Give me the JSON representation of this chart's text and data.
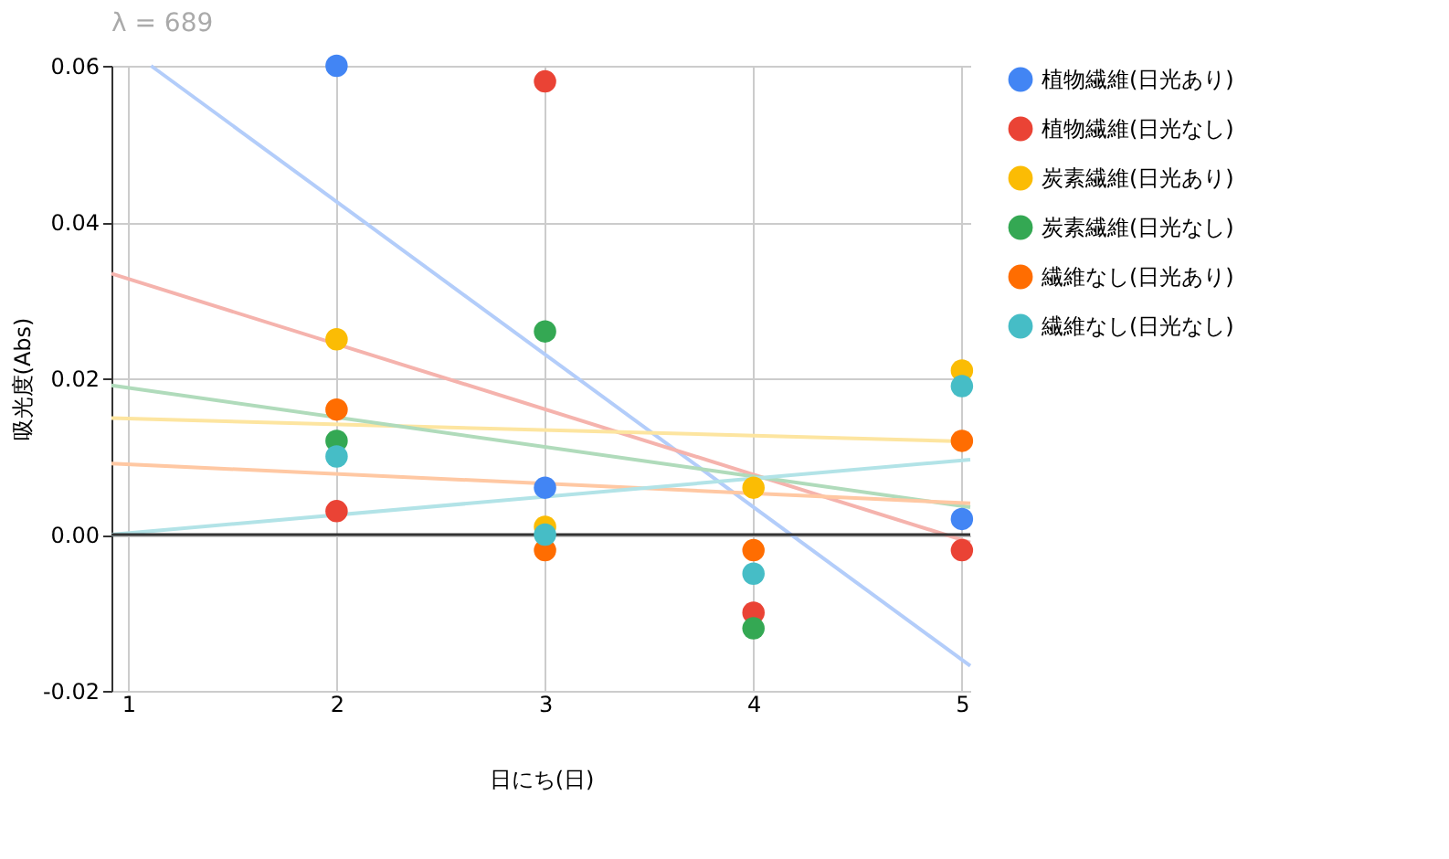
{
  "chart_data": {
    "type": "scatter",
    "title": "λ = 689",
    "xlabel": "日にち(日)",
    "ylabel": "吸光度(Abs)",
    "x": [
      2,
      3,
      4,
      5
    ],
    "series": [
      {
        "name": "植物繊維(日光あり)",
        "color": "#4285f4",
        "values": [
          0.06,
          0.006,
          null,
          0.002
        ]
      },
      {
        "name": "植物繊維(日光なし)",
        "color": "#ea4335",
        "values": [
          0.003,
          0.058,
          -0.01,
          -0.002
        ]
      },
      {
        "name": "炭素繊維(日光あり)",
        "color": "#fbbc04",
        "values": [
          0.025,
          0.001,
          0.006,
          0.021
        ]
      },
      {
        "name": "炭素繊維(日光なし)",
        "color": "#34a853",
        "values": [
          0.012,
          0.026,
          -0.012,
          null
        ]
      },
      {
        "name": "繊維なし(日光あり)",
        "color": "#ff6d01",
        "values": [
          0.016,
          -0.002,
          -0.002,
          0.012
        ]
      },
      {
        "name": "繊維なし(日光なし)",
        "color": "#46bdc6",
        "values": [
          0.01,
          0.0,
          -0.005,
          0.019
        ]
      },
      {
        "type": "line",
        "marker": "none",
        "color": "#b3cdfa",
        "x": [
          1.11,
          5.04
        ],
        "values": [
          0.06,
          -0.0168
        ]
      },
      {
        "type": "line",
        "marker": "none",
        "color": "#f5b3ad",
        "x": [
          0.92,
          5.04
        ],
        "values": [
          0.0334,
          -0.001
        ]
      },
      {
        "type": "line",
        "marker": "none",
        "color": "#fde5a0",
        "x": [
          0.92,
          5.04
        ],
        "values": [
          0.0149,
          0.0119
        ]
      },
      {
        "type": "line",
        "marker": "none",
        "color": "#b0dbbb",
        "x": [
          0.92,
          5.04
        ],
        "values": [
          0.0191,
          0.0035
        ]
      },
      {
        "type": "line",
        "marker": "none",
        "color": "#ffc8a3",
        "x": [
          0.92,
          5.04
        ],
        "values": [
          0.0091,
          0.004
        ]
      },
      {
        "type": "line",
        "marker": "none",
        "color": "#b2e3e7",
        "x": [
          0.92,
          5.04
        ],
        "values": [
          0.0,
          0.0096
        ]
      }
    ],
    "xlim": [
      0.92,
      5.04
    ],
    "xticks": [
      1,
      2,
      3,
      4,
      5
    ],
    "ylim": [
      -0.02,
      0.06
    ],
    "yticks": [
      {
        "value": -0.02,
        "label": "-0.02"
      },
      {
        "value": 0,
        "label": "0.00"
      },
      {
        "value": 0.02,
        "label": "0.02"
      },
      {
        "value": 0.04,
        "label": "0.04"
      },
      {
        "value": 0.06,
        "label": "0.06"
      }
    ],
    "ref_lines": [
      {
        "axis": "y",
        "value": 0,
        "color": "#333333"
      }
    ],
    "grid": true,
    "legend": "right",
    "marker": "circle",
    "line_style": "solid"
  }
}
